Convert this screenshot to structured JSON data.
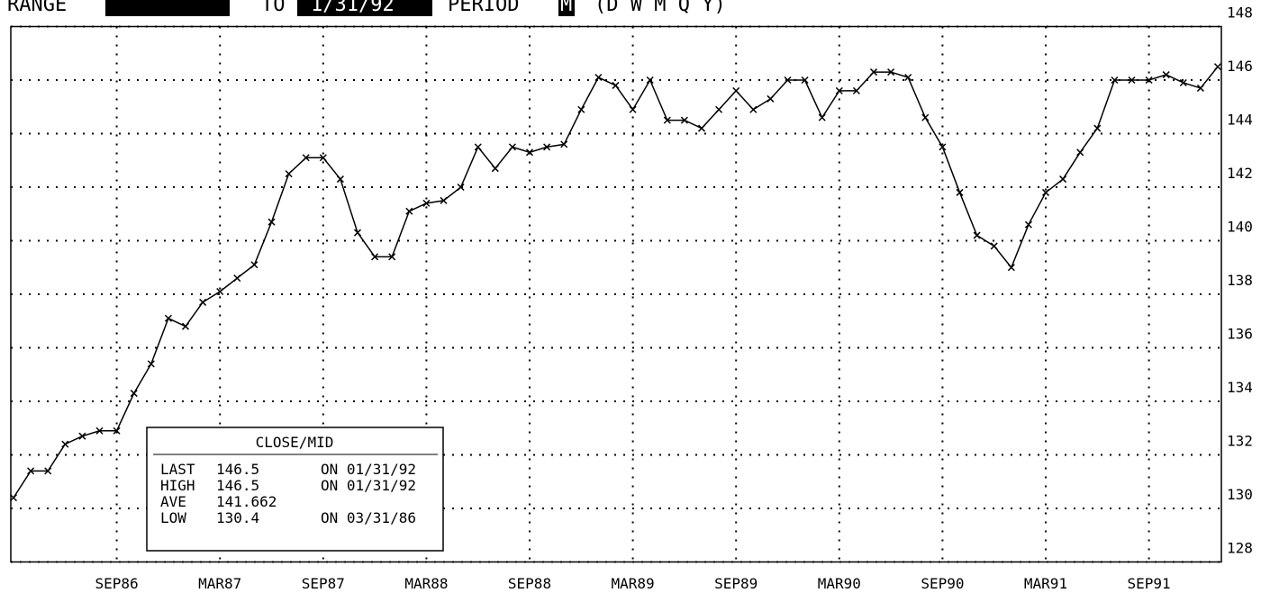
{
  "header": {
    "range_label": "RANGE",
    "to_label": "TO",
    "to_value": "1/31/92",
    "period_label": "PERIOD",
    "period_value": "M",
    "period_options": "(D W M Q Y)"
  },
  "chart_data": {
    "type": "line",
    "color": "#000000",
    "categories": [
      null,
      null,
      null,
      null,
      null,
      null,
      "SEP86",
      null,
      null,
      null,
      null,
      null,
      "MAR87",
      null,
      null,
      null,
      null,
      null,
      "SEP87",
      null,
      null,
      null,
      null,
      null,
      "MAR88",
      null,
      null,
      null,
      null,
      null,
      "SEP88",
      null,
      null,
      null,
      null,
      null,
      "MAR89",
      null,
      null,
      null,
      null,
      null,
      "SEP89",
      null,
      null,
      null,
      null,
      null,
      "MAR90",
      null,
      null,
      null,
      null,
      null,
      "SEP90",
      null,
      null,
      null,
      null,
      null,
      "MAR91",
      null,
      null,
      null,
      null,
      null,
      "SEP91",
      null,
      null,
      null,
      null
    ],
    "values": [
      130.4,
      131.4,
      131.4,
      132.4,
      132.7,
      132.9,
      132.9,
      134.3,
      135.4,
      137.1,
      136.8,
      137.7,
      138.1,
      138.6,
      139.1,
      140.7,
      142.5,
      143.1,
      143.1,
      142.3,
      140.3,
      139.4,
      139.4,
      141.1,
      141.4,
      141.5,
      142.0,
      143.5,
      142.7,
      143.5,
      143.3,
      143.5,
      143.6,
      144.9,
      146.1,
      145.8,
      144.9,
      146.0,
      144.5,
      144.5,
      144.2,
      144.9,
      145.6,
      144.9,
      145.3,
      146.0,
      146.0,
      144.6,
      145.6,
      145.6,
      146.3,
      146.3,
      146.1,
      144.6,
      143.5,
      141.8,
      140.2,
      139.8,
      139.0,
      140.6,
      141.8,
      142.3,
      143.3,
      144.2,
      146.0,
      146.0,
      146.0,
      146.2,
      145.9,
      145.7,
      146.5
    ],
    "ylim": [
      128,
      148
    ],
    "yticks": [
      128,
      130,
      132,
      134,
      136,
      138,
      140,
      142,
      144,
      146,
      148
    ],
    "grid": true
  },
  "stats": {
    "title": "CLOSE/MID",
    "rows": [
      {
        "label": "LAST",
        "value": 146.5,
        "date": "ON 01/31/92"
      },
      {
        "label": "HIGH",
        "value": 146.5,
        "date": "ON 01/31/92"
      },
      {
        "label": "AVE",
        "value": 141.662
      },
      {
        "label": "LOW",
        "value": 130.4,
        "date": "ON 03/31/86"
      }
    ]
  }
}
